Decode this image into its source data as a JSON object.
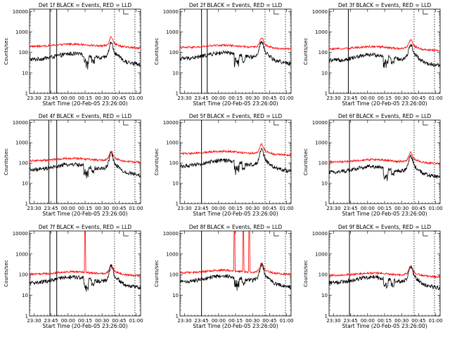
{
  "chart_data": {
    "type": "line",
    "common": {
      "xlabel": "Start Time (20-Feb-05 23:26:00)",
      "ylabel": "Counts/sec",
      "x_tick_labels": [
        "23:30",
        "23:45",
        "00:00",
        "00:15",
        "00:30",
        "00:45",
        "01:00"
      ],
      "x_tick_minutes": [
        4,
        19,
        34,
        49,
        64,
        79,
        94
      ],
      "x_range_minutes": [
        0,
        98
      ],
      "y_tick_labels": [
        "1",
        "10",
        "100",
        "1000",
        "10000"
      ],
      "y_range": [
        1,
        13000
      ],
      "y_scale": "log",
      "series": [
        {
          "name": "Events",
          "color": "#000000"
        },
        {
          "name": "LLD",
          "color": "#ff0000"
        }
      ],
      "solid_vlines_minutes": [
        18,
        24
      ],
      "dotted_vlines_minutes": [
        75,
        93
      ]
    },
    "panels": [
      {
        "title": "Det 1f BLACK = Events, RED = LLD",
        "black_base": 45,
        "red_ratio": 3.8,
        "peak": 4.5,
        "spikes": [],
        "solid_vlines_minutes": [
          18,
          24
        ]
      },
      {
        "title": "Det 2f BLACK = Events, RED = LLD",
        "black_base": 50,
        "red_ratio": 3.0,
        "peak": 4.8,
        "spikes": [],
        "solid_vlines_minutes": [
          19,
          24
        ]
      },
      {
        "title": "Det 3f BLACK = Events, RED = LLD",
        "black_base": 40,
        "red_ratio": 3.2,
        "peak": 4.2,
        "spikes": [],
        "solid_vlines_minutes": [
          17
        ]
      },
      {
        "title": "Det 4f BLACK = Events, RED = LLD",
        "black_base": 45,
        "red_ratio": 2.5,
        "peak": 4.4,
        "spikes": [],
        "solid_vlines_minutes": [
          17,
          24
        ]
      },
      {
        "title": "Det 5f BLACK = Events, RED = LLD",
        "black_base": 70,
        "red_ratio": 3.6,
        "peak": 4.6,
        "spikes": [],
        "solid_vlines_minutes": [
          19
        ]
      },
      {
        "title": "Det 6f BLACK = Events, RED = LLD",
        "black_base": 35,
        "red_ratio": 2.8,
        "peak": 4.4,
        "spikes": [],
        "solid_vlines_minutes": [
          18
        ]
      },
      {
        "title": "Det 7f BLACK = Events, RED = LLD",
        "black_base": 40,
        "red_ratio": 2.3,
        "peak": 4.2,
        "spikes": [
          49
        ],
        "solid_vlines_minutes": [
          18,
          24
        ]
      },
      {
        "title": "Det 8f BLACK = Events, RED = LLD",
        "black_base": 45,
        "red_ratio": 2.4,
        "peak": 4.3,
        "spikes": [
          48,
          56,
          61
        ],
        "solid_vlines_minutes": [
          19
        ]
      },
      {
        "title": "Det 9f BLACK = Events, RED = LLD",
        "black_base": 40,
        "red_ratio": 2.0,
        "peak": 4.2,
        "spikes": [],
        "solid_vlines_minutes": [
          18
        ]
      }
    ]
  }
}
